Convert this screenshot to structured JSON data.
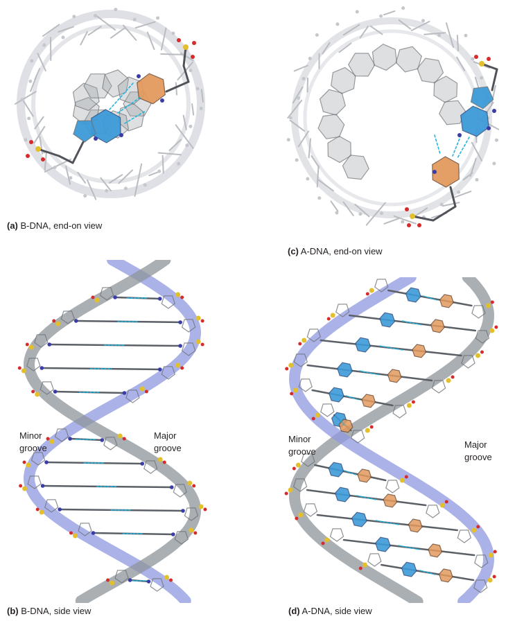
{
  "panels": [
    {
      "id": "a",
      "letter": "(a)",
      "caption": "B-DNA, end-on view"
    },
    {
      "id": "b",
      "letter": "(b)",
      "caption": "B-DNA, side view",
      "labels": {
        "minor": [
          "Minor",
          "groove"
        ],
        "major": [
          "Major",
          "groove"
        ]
      }
    },
    {
      "id": "c",
      "letter": "(c)",
      "caption": "A-DNA, end-on view"
    },
    {
      "id": "d",
      "letter": "(d)",
      "caption": "A-DNA, side view",
      "labels": {
        "minor": [
          "Minor",
          "groove"
        ],
        "major": [
          "Major",
          "groove"
        ]
      }
    }
  ],
  "colors": {
    "backbone": "#b9bcc1",
    "ribbon": "#c9ccd4",
    "ribbon_blue": "#8f98e0",
    "purine": "#3d9ad8",
    "pyrimidine": "#e29a5e",
    "hbond": "#1fb6e0",
    "phosphorus": "#e3c02b",
    "oxygen": "#d62b2b",
    "nitrogen": "#3a3ca8",
    "carbon": "#505359"
  }
}
